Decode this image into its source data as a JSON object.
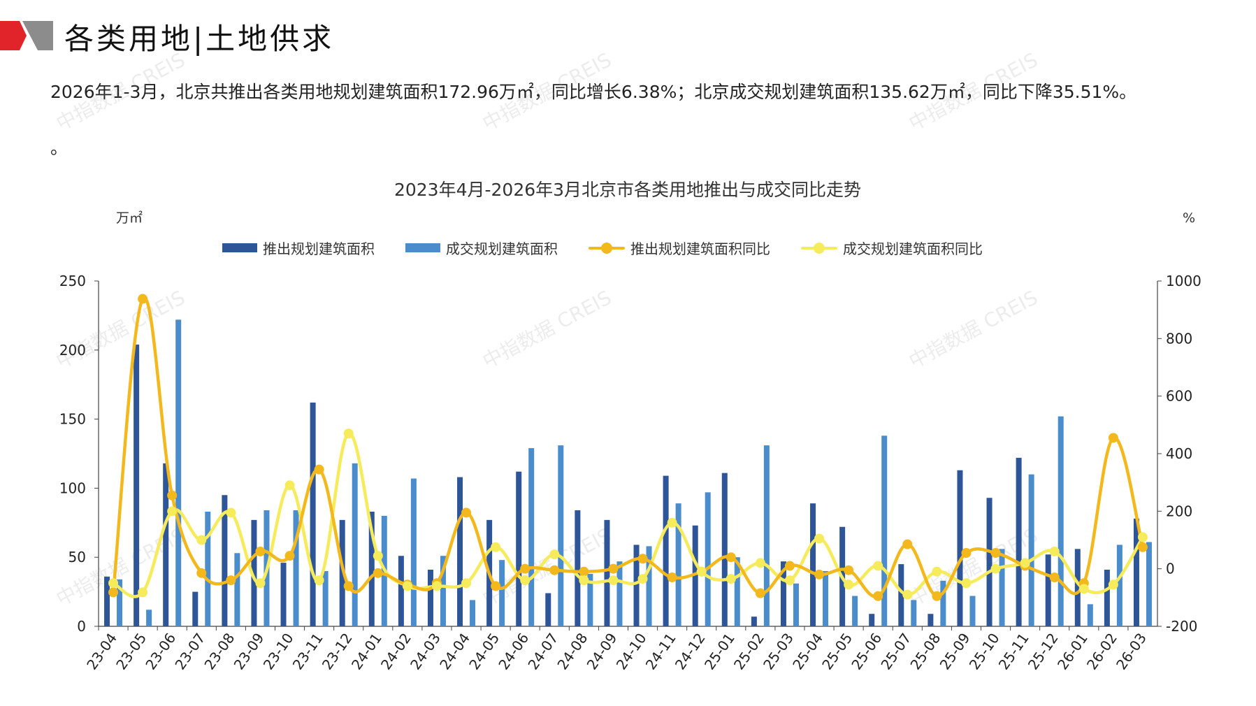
{
  "header": {
    "title": "各类用地|土地供求"
  },
  "summary": {
    "text": "2026年1-3月，北京共推出各类用地规划建筑面积172.96万㎡，同比增长6.38%；北京成交规划建筑面积135.62万㎡，同比下降35.51%。",
    "trailing": "。"
  },
  "watermark_text": "中指数据 CREIS",
  "colors": {
    "supply_bar": "#2E5597",
    "deal_bar": "#4A8CCC",
    "supply_line": "#F2B81C",
    "deal_line": "#F6EB5A",
    "logo_red": "#E0242A",
    "logo_grey": "#8C8C8C"
  },
  "chart_data": {
    "type": "bar+line",
    "title": "2023年4月-2026年3月北京市各类用地推出与成交同比走势",
    "y_left_unit": "万㎡",
    "y_right_unit": "%",
    "y_left_lim": [
      0,
      250
    ],
    "y_left_ticks": [
      0,
      50,
      100,
      150,
      200,
      250
    ],
    "y_right_lim": [
      -200,
      1000
    ],
    "y_right_ticks": [
      -200,
      0,
      200,
      400,
      600,
      800,
      1000
    ],
    "legend_position": "top",
    "categories": [
      "23-04",
      "23-05",
      "23-06",
      "23-07",
      "23-08",
      "23-09",
      "23-10",
      "23-11",
      "23-12",
      "24-01",
      "24-02",
      "24-03",
      "24-04",
      "24-05",
      "24-06",
      "24-07",
      "24-08",
      "24-09",
      "24-10",
      "24-11",
      "24-12",
      "25-01",
      "25-02",
      "25-03",
      "25-04",
      "25-05",
      "25-06",
      "25-07",
      "25-08",
      "25-09",
      "25-10",
      "25-11",
      "25-12",
      "26-01",
      "26-02",
      "26-03"
    ],
    "series": [
      {
        "name": "推出规划建筑面积",
        "type": "bar",
        "axis": "left",
        "values": [
          36,
          204,
          118,
          25,
          95,
          77,
          46,
          162,
          77,
          83,
          51,
          41,
          108,
          77,
          112,
          24,
          84,
          77,
          59,
          109,
          73,
          111,
          7,
          47,
          89,
          72,
          9,
          45,
          9,
          113,
          93,
          122,
          52,
          56,
          41,
          78
        ]
      },
      {
        "name": "成交规划建筑面积",
        "type": "bar",
        "axis": "left",
        "values": [
          34,
          12,
          222,
          83,
          53,
          84,
          84,
          40,
          118,
          80,
          107,
          51,
          19,
          48,
          129,
          131,
          38,
          47,
          58,
          89,
          97,
          50,
          131,
          31,
          40,
          22,
          138,
          19,
          33,
          22,
          56,
          110,
          152,
          16,
          59,
          61
        ]
      },
      {
        "name": "推出规划建筑面积同比",
        "type": "line",
        "axis": "right",
        "values": [
          -82,
          938,
          255,
          -15,
          -40,
          60,
          45,
          345,
          -60,
          -15,
          -55,
          -50,
          195,
          -60,
          0,
          -5,
          -10,
          0,
          35,
          -30,
          -10,
          40,
          -85,
          10,
          -20,
          -5,
          -95,
          85,
          -95,
          55,
          55,
          10,
          -30,
          -50,
          455,
          75
        ]
      },
      {
        "name": "成交规划建筑面积同比",
        "type": "line",
        "axis": "right",
        "values": [
          -50,
          -82,
          200,
          100,
          195,
          -50,
          290,
          -40,
          470,
          45,
          -60,
          -60,
          -50,
          75,
          -40,
          50,
          -40,
          -40,
          -35,
          160,
          -10,
          -35,
          20,
          -40,
          105,
          -55,
          10,
          -90,
          -10,
          -50,
          0,
          20,
          60,
          -70,
          -55,
          110
        ]
      }
    ]
  }
}
